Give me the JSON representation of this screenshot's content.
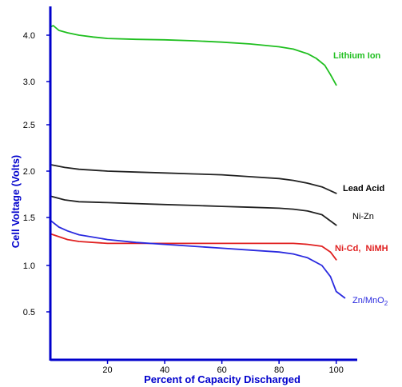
{
  "chart_data": {
    "type": "line",
    "xlabel": "Percent of Capacity Discharged",
    "ylabel": "Cell Voltage (Volts)",
    "xlim": [
      0,
      104
    ],
    "ylim": [
      0,
      4.3
    ],
    "x_ticks": [
      20,
      40,
      60,
      80,
      100
    ],
    "y_ticks": [
      0.5,
      1.0,
      1.5,
      2.0,
      2.5,
      3.0,
      4.0
    ],
    "y_tick_labels": [
      "0.5",
      "1.0",
      "1.5",
      "2.0",
      "2.5",
      "3.0",
      "4.0"
    ],
    "axis_color": "#0000cc",
    "xlabel_color": "#0000cc",
    "ylabel_color": "#0000cc",
    "series": [
      {
        "name": "Lithium Ion",
        "color": "#1fbf1f",
        "label_color": "#1fbf1f",
        "label_bold": true,
        "x": [
          0,
          1,
          3,
          6,
          10,
          15,
          20,
          30,
          40,
          50,
          60,
          70,
          80,
          85,
          90,
          93,
          96,
          98,
          100
        ],
        "y": [
          4.17,
          4.2,
          4.1,
          4.05,
          4.0,
          3.96,
          3.93,
          3.91,
          3.9,
          3.88,
          3.85,
          3.81,
          3.75,
          3.7,
          3.6,
          3.5,
          3.35,
          3.15,
          2.96
        ]
      },
      {
        "name": "Lead Acid",
        "color": "#222222",
        "label_color": "#000000",
        "label_bold": true,
        "x": [
          0,
          5,
          10,
          20,
          30,
          40,
          50,
          60,
          70,
          80,
          85,
          90,
          95,
          100
        ],
        "y": [
          2.07,
          2.04,
          2.02,
          2.0,
          1.99,
          1.98,
          1.97,
          1.96,
          1.94,
          1.92,
          1.9,
          1.87,
          1.83,
          1.76
        ]
      },
      {
        "name": "Ni-Zn",
        "color": "#222222",
        "label_color": "#000000",
        "label_bold": false,
        "x": [
          0,
          5,
          10,
          20,
          30,
          40,
          50,
          60,
          70,
          80,
          85,
          90,
          95,
          100
        ],
        "y": [
          1.73,
          1.69,
          1.67,
          1.66,
          1.65,
          1.64,
          1.63,
          1.62,
          1.61,
          1.6,
          1.59,
          1.57,
          1.53,
          1.42
        ]
      },
      {
        "name": "Ni-Cd,  NiMH",
        "color": "#e02020",
        "label_color": "#e02020",
        "label_bold": true,
        "x": [
          0,
          3,
          6,
          10,
          20,
          30,
          40,
          50,
          60,
          70,
          80,
          85,
          90,
          95,
          98,
          100
        ],
        "y": [
          1.33,
          1.3,
          1.27,
          1.25,
          1.23,
          1.23,
          1.23,
          1.23,
          1.23,
          1.23,
          1.23,
          1.23,
          1.22,
          1.2,
          1.14,
          1.06
        ]
      },
      {
        "name": "Zn/MnO2",
        "color": "#2a2adf",
        "label_color": "#2a2adf",
        "label_bold": false,
        "x": [
          0,
          3,
          6,
          10,
          20,
          30,
          40,
          50,
          60,
          70,
          80,
          85,
          90,
          95,
          98,
          100,
          103
        ],
        "y": [
          1.47,
          1.4,
          1.36,
          1.32,
          1.27,
          1.24,
          1.22,
          1.2,
          1.18,
          1.16,
          1.14,
          1.12,
          1.08,
          1.0,
          0.88,
          0.72,
          0.65
        ]
      }
    ]
  }
}
